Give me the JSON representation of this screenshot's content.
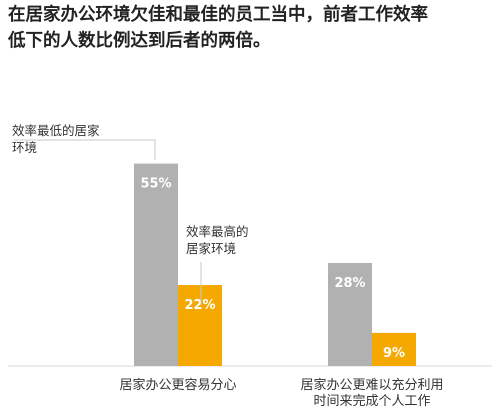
{
  "chart_data": {
    "type": "bar",
    "title_lines": [
      "在居家办公环境欠佳和最佳的员工当中，前者工作效率",
      "低下的人数比例达到后者的两倍。"
    ],
    "categories": [
      [
        "居家办公更容易分心"
      ],
      [
        "居家办公更难以充分利用",
        "时间来完成个人工作"
      ]
    ],
    "series": [
      {
        "name": "效率最低的居家环境",
        "name_lines": [
          "效率最低的居家",
          "环境"
        ],
        "values": [
          55,
          28
        ],
        "color": "#b1b1b1"
      },
      {
        "name": "效率最高的居家环境",
        "name_lines": [
          "效率最高的",
          "居家环境"
        ],
        "values": [
          22,
          9
        ],
        "color": "#f5a800"
      }
    ],
    "value_suffix": "%",
    "ylim": [
      0,
      70
    ],
    "grid": false,
    "legend": "annotations"
  }
}
